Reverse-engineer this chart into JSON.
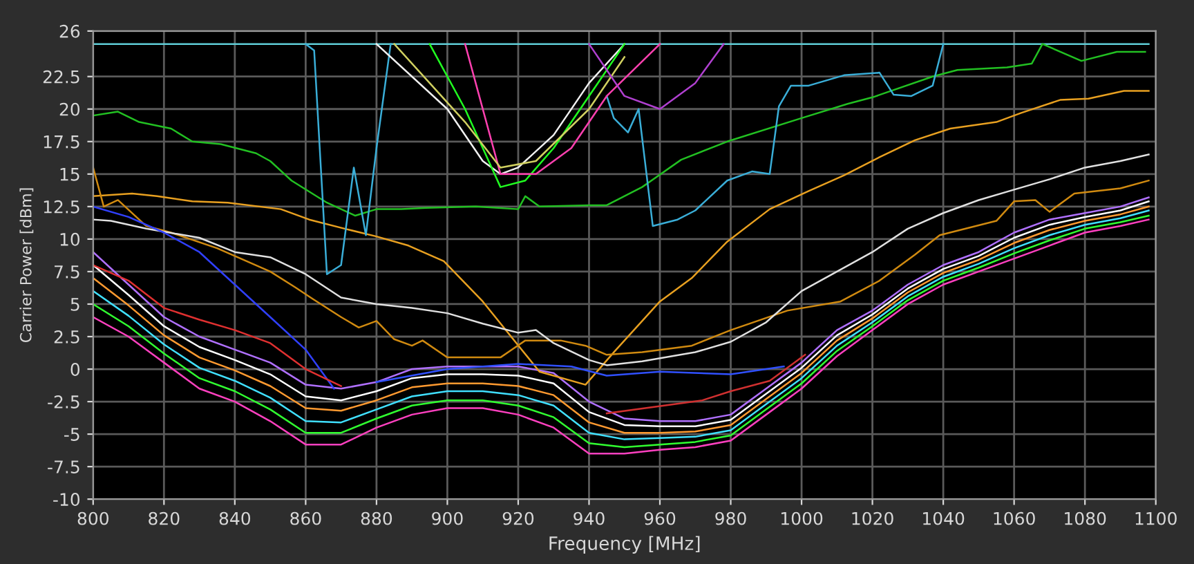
{
  "chart_data": {
    "type": "line",
    "xlabel": "Frequency [MHz]",
    "ylabel": "Carrier Power [dBm]",
    "xlim": [
      800,
      1100
    ],
    "ylim": [
      -10,
      26
    ],
    "xticks": [
      800,
      820,
      840,
      860,
      880,
      900,
      920,
      940,
      960,
      980,
      1000,
      1020,
      1040,
      1060,
      1080,
      1100
    ],
    "yticks": [
      -10,
      -7.5,
      -5,
      -2.5,
      0,
      2.5,
      5,
      7.5,
      10,
      12.5,
      15,
      17.5,
      20,
      22.5,
      26
    ],
    "grid": true,
    "x": [
      800,
      810,
      820,
      830,
      840,
      850,
      860,
      870,
      880,
      890,
      900,
      910,
      920,
      930,
      940,
      950,
      960,
      970,
      980,
      990,
      1000,
      1010,
      1020,
      1030,
      1040,
      1050,
      1060,
      1070,
      1080,
      1090,
      1098
    ],
    "series": [
      {
        "color": "#ff40c0",
        "values": [
          4,
          2.5,
          0.5,
          -1.5,
          -2.5,
          -4,
          -5.8,
          -5.8,
          -4.5,
          -3.5,
          -3,
          -3,
          -3.5,
          -4.5,
          -6.5,
          -6.5,
          -6.2,
          -6,
          -5.5,
          -3.5,
          -1.5,
          1,
          3,
          5,
          6.5,
          7.5,
          8.5,
          9.5,
          10.5,
          11,
          11.5
        ]
      },
      {
        "color": "#30ff30",
        "values": [
          5,
          3.3,
          1.2,
          -0.7,
          -1.7,
          -3.1,
          -4.9,
          -4.9,
          -3.8,
          -2.8,
          -2.4,
          -2.4,
          -2.8,
          -3.7,
          -5.7,
          -6,
          -5.8,
          -5.6,
          -5.1,
          -3.1,
          -1.1,
          1.4,
          3.3,
          5.3,
          6.8,
          7.8,
          8.9,
          9.9,
          10.8,
          11.3,
          11.8
        ]
      },
      {
        "color": "#40e0ff",
        "values": [
          6,
          4.1,
          1.9,
          0.1,
          -0.9,
          -2.2,
          -4,
          -4.1,
          -3.1,
          -2.1,
          -1.7,
          -1.7,
          -2,
          -2.8,
          -4.9,
          -5.4,
          -5.3,
          -5.2,
          -4.7,
          -2.7,
          -0.7,
          1.8,
          3.6,
          5.6,
          7.1,
          8.1,
          9.3,
          10.3,
          11.1,
          11.6,
          12.2
        ]
      },
      {
        "color": "#ff9a30",
        "values": [
          7,
          4.9,
          2.6,
          0.9,
          -0.1,
          -1.3,
          -3,
          -3.2,
          -2.4,
          -1.4,
          -1.1,
          -1.1,
          -1.3,
          -2,
          -4.1,
          -4.9,
          -4.9,
          -4.8,
          -4.3,
          -2.3,
          -0.3,
          2.2,
          3.9,
          5.9,
          7.4,
          8.4,
          9.7,
          10.7,
          11.4,
          11.9,
          12.5
        ]
      },
      {
        "color": "#ffffff",
        "values": [
          8,
          5.7,
          3.3,
          1.7,
          0.7,
          -0.4,
          -2.1,
          -2.4,
          -1.7,
          -0.7,
          -0.4,
          -0.4,
          -0.5,
          -1.1,
          -3.3,
          -4.3,
          -4.4,
          -4.4,
          -3.9,
          -1.9,
          0.1,
          2.6,
          4.2,
          6.2,
          7.7,
          8.7,
          10.1,
          11.1,
          11.7,
          12.2,
          12.9
        ]
      },
      {
        "color": "#b070ff",
        "values": [
          9,
          6.5,
          4,
          2.5,
          1.5,
          0.5,
          -1.2,
          -1.5,
          -1,
          0,
          0.2,
          0.2,
          0.2,
          -0.3,
          -2.5,
          -3.8,
          -4,
          -4,
          -3.5,
          -1.5,
          0.5,
          3,
          4.5,
          6.5,
          8,
          9,
          10.5,
          11.5,
          12,
          12.5,
          13.2
        ]
      },
      {
        "color": "#5ecdd6",
        "x": [
          800,
          1098
        ],
        "values": [
          25,
          25
        ]
      },
      {
        "color": "#22c022",
        "x": [
          800,
          807,
          813,
          822,
          828,
          836,
          846,
          850,
          856,
          866,
          874,
          880,
          887,
          894,
          908,
          920,
          922,
          926,
          940,
          945,
          955,
          966,
          979,
          1000,
          1013,
          1020,
          1037,
          1044,
          1058,
          1065,
          1068,
          1079,
          1089,
          1097
        ],
        "values": [
          19.5,
          19.8,
          19,
          18.5,
          17.5,
          17.3,
          16.6,
          16,
          14.5,
          12.8,
          11.8,
          12.3,
          12.3,
          12.4,
          12.5,
          12.3,
          13.3,
          12.5,
          12.6,
          12.6,
          14,
          16.1,
          17.5,
          19.3,
          20.4,
          20.9,
          22.5,
          23,
          23.2,
          23.5,
          25,
          23.7,
          24.4,
          24.4
        ]
      },
      {
        "color": "#e8a020",
        "x": [
          800,
          811,
          818,
          828,
          838,
          853,
          861,
          871,
          880,
          889,
          899,
          910,
          918,
          926,
          939,
          947,
          960,
          969,
          979,
          991,
          1002,
          1012,
          1022,
          1032,
          1042,
          1055,
          1062,
          1073,
          1081,
          1091,
          1098
        ],
        "values": [
          13.3,
          13.5,
          13.3,
          12.9,
          12.8,
          12.3,
          11.5,
          10.8,
          10.2,
          9.5,
          8.3,
          5.2,
          2.5,
          -0.2,
          -1.2,
          1.3,
          5.2,
          7,
          9.8,
          12.3,
          13.7,
          14.9,
          16.3,
          17.6,
          18.5,
          19,
          19.7,
          20.7,
          20.8,
          21.4,
          21.4
        ]
      },
      {
        "color": "#d08a10",
        "x": [
          800,
          803,
          807,
          815,
          822,
          835,
          840,
          850,
          857,
          862,
          870,
          875,
          880,
          885,
          890,
          893,
          900,
          915,
          922,
          932,
          939,
          945,
          955,
          969,
          980,
          996,
          1011,
          1022,
          1032,
          1039,
          1055,
          1060,
          1066,
          1070,
          1077,
          1090,
          1098
        ],
        "values": [
          15.5,
          12.5,
          13,
          11,
          10.5,
          9.3,
          8.7,
          7.5,
          6.3,
          5.4,
          4,
          3.2,
          3.7,
          2.3,
          1.8,
          2.2,
          0.9,
          0.9,
          2.2,
          2.2,
          1.8,
          1.1,
          1.3,
          1.8,
          3,
          4.5,
          5.2,
          6.8,
          8.8,
          10.3,
          11.4,
          12.9,
          13,
          12.1,
          13.5,
          13.9,
          14.5
        ]
      },
      {
        "color": "#e0e0e0",
        "x": [
          800,
          805,
          815,
          830,
          840,
          850,
          860,
          870,
          880,
          890,
          900,
          910,
          920,
          925,
          930,
          940,
          945,
          955,
          970,
          980,
          990,
          1000,
          1010,
          1020,
          1030,
          1040,
          1050,
          1060,
          1070,
          1080,
          1090,
          1098
        ],
        "values": [
          11.5,
          11.4,
          10.8,
          10.1,
          9,
          8.6,
          7.3,
          5.5,
          5,
          4.7,
          4.3,
          3.5,
          2.8,
          3,
          2,
          0.7,
          0.3,
          0.6,
          1.3,
          2.1,
          3.6,
          6,
          7.5,
          9,
          10.8,
          12,
          13,
          13.8,
          14.6,
          15.5,
          16,
          16.5
        ]
      },
      {
        "color": "#3040ff",
        "x": [
          800,
          810,
          820,
          830,
          840,
          850,
          860,
          868
        ],
        "values": [
          12.5,
          11.7,
          10.5,
          9,
          6.5,
          4,
          1.5,
          -1.5
        ]
      },
      {
        "color": "#3050ff",
        "x": [
          880,
          900,
          920,
          935,
          945,
          960,
          980,
          995
        ],
        "values": [
          -1,
          0,
          0.4,
          0.2,
          -0.5,
          -0.2,
          -0.4,
          0.2
        ]
      },
      {
        "color": "#e03030",
        "x": [
          800,
          810,
          820,
          830,
          840,
          850,
          860,
          870
        ],
        "values": [
          8,
          6.8,
          4.7,
          3.8,
          3,
          2,
          0,
          -1.3
        ]
      },
      {
        "color": "#d03030",
        "x": [
          945,
          972,
          980,
          991,
          1001
        ],
        "values": [
          -3.4,
          -2.4,
          -1.7,
          -0.9,
          1.1
        ]
      },
      {
        "color": "#3aaed8",
        "x": [
          860,
          862.4,
          866,
          870,
          873.6,
          877,
          880,
          884
        ],
        "values": [
          25,
          24.5,
          7.3,
          8,
          15.5,
          10.3,
          17,
          25
        ]
      },
      {
        "color": "#3aaed8",
        "x": [
          945,
          947,
          951,
          954,
          958,
          965,
          970,
          979,
          986,
          991,
          993.6,
          997,
          1002,
          1012,
          1022,
          1026,
          1031,
          1037,
          1040
        ],
        "values": [
          21,
          19.3,
          18.2,
          20,
          11,
          11.5,
          12.2,
          14.5,
          15.2,
          15,
          20.2,
          21.8,
          21.8,
          22.6,
          22.8,
          21.1,
          21,
          21.8,
          25
        ]
      },
      {
        "color": "#f0f0f0",
        "x": [
          880,
          900,
          910,
          915,
          920,
          930,
          940,
          950
        ],
        "values": [
          25,
          20,
          16,
          15,
          15.5,
          18,
          22,
          25
        ]
      },
      {
        "color": "#20ff20",
        "x": [
          895,
          905,
          915,
          922,
          930,
          940,
          950
        ],
        "values": [
          25,
          20,
          14,
          14.5,
          17,
          21,
          25
        ]
      },
      {
        "color": "#ff40b0",
        "x": [
          905,
          915,
          925,
          935,
          945,
          960
        ],
        "values": [
          25,
          15,
          15,
          17,
          21,
          25
        ]
      },
      {
        "color": "#d0d060",
        "x": [
          885,
          905,
          915,
          925,
          940,
          950
        ],
        "values": [
          25,
          19,
          15.5,
          16,
          20,
          24
        ]
      },
      {
        "color": "#b040d0",
        "x": [
          940,
          950,
          960,
          970,
          978
        ],
        "values": [
          25,
          21,
          20,
          22,
          25
        ]
      }
    ]
  }
}
